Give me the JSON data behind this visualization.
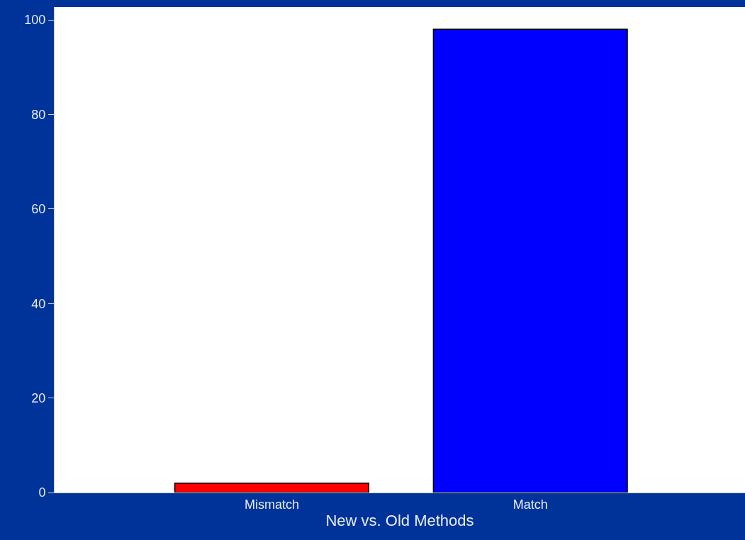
{
  "chart_data": {
    "type": "bar",
    "xlabel": "New vs. Old Methods",
    "categories": [
      "Mismatch",
      "Match"
    ],
    "values": [
      2,
      98
    ],
    "colors": [
      "#ff0000",
      "#0000ff"
    ],
    "ylim": [
      0,
      102.7
    ],
    "yticks": [
      0,
      20,
      40,
      60,
      80,
      100
    ]
  }
}
